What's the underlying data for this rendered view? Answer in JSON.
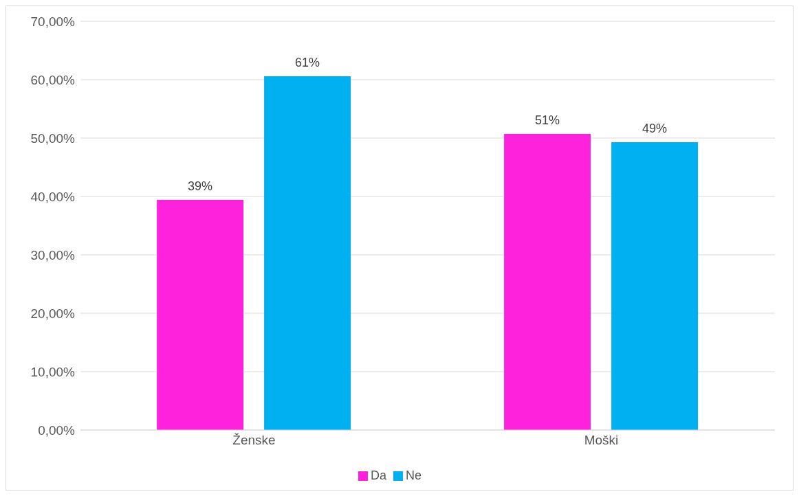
{
  "chart_data": {
    "type": "bar",
    "categories": [
      "Ženske",
      "Moški"
    ],
    "series": [
      {
        "name": "Da",
        "color": "#ff22dd",
        "values": [
          39.4,
          50.7
        ],
        "value_labels": [
          "39%",
          "51%"
        ]
      },
      {
        "name": "Ne",
        "color": "#00b0f0",
        "values": [
          60.6,
          49.3
        ],
        "value_labels": [
          "61%",
          "49%"
        ]
      }
    ],
    "ylim": [
      0,
      70
    ],
    "yticks": [
      {
        "value": 0,
        "label": "0,00%"
      },
      {
        "value": 10,
        "label": "10,00%"
      },
      {
        "value": 20,
        "label": "20,00%"
      },
      {
        "value": 30,
        "label": "30,00%"
      },
      {
        "value": 40,
        "label": "40,00%"
      },
      {
        "value": 50,
        "label": "50,00%"
      },
      {
        "value": 60,
        "label": "60,00%"
      },
      {
        "value": 70,
        "label": "70,00%"
      }
    ],
    "grid": "y",
    "legend": "bottom"
  }
}
